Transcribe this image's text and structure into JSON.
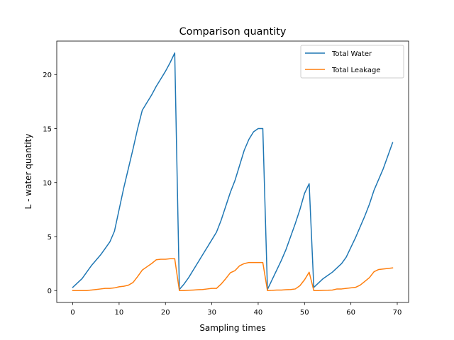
{
  "chart_data": {
    "type": "line",
    "title": "Comparison quantity",
    "xlabel": "Sampling times",
    "ylabel": "L - water quantity",
    "xlim": [
      -3.45,
      72.45
    ],
    "ylim": [
      -1.1,
      23.1
    ],
    "xticks": [
      0,
      10,
      20,
      30,
      40,
      50,
      60,
      70
    ],
    "yticks": [
      0,
      5,
      10,
      15,
      20
    ],
    "grid": false,
    "legend_position": "top-right",
    "x": [
      0,
      1,
      2,
      3,
      4,
      5,
      6,
      7,
      8,
      9,
      10,
      11,
      12,
      13,
      14,
      15,
      16,
      17,
      18,
      19,
      20,
      21,
      22,
      23,
      24,
      25,
      26,
      27,
      28,
      29,
      30,
      31,
      32,
      33,
      34,
      35,
      36,
      37,
      38,
      39,
      40,
      41,
      42,
      43,
      44,
      45,
      46,
      47,
      48,
      49,
      50,
      51,
      52,
      53,
      54,
      55,
      56,
      57,
      58,
      59,
      60,
      61,
      62,
      63,
      64,
      65,
      66,
      67,
      68,
      69
    ],
    "series": [
      {
        "name": "Total Water",
        "color": "#1f77b4",
        "values": [
          0.3,
          0.7,
          1.1,
          1.7,
          2.3,
          2.8,
          3.3,
          3.9,
          4.5,
          5.5,
          7.5,
          9.5,
          11.3,
          13.1,
          15.0,
          16.7,
          17.4,
          18.1,
          18.9,
          19.6,
          20.3,
          21.1,
          22.0,
          0.1,
          0.6,
          1.2,
          1.9,
          2.6,
          3.3,
          4.0,
          4.7,
          5.4,
          6.5,
          7.8,
          9.1,
          10.2,
          11.6,
          13.0,
          14.0,
          14.7,
          15.0,
          15.0,
          0.1,
          1.0,
          1.9,
          2.8,
          3.8,
          5.0,
          6.2,
          7.5,
          9.0,
          9.9,
          0.3,
          0.7,
          1.1,
          1.4,
          1.7,
          2.1,
          2.5,
          3.1,
          4.0,
          4.9,
          5.9,
          6.9,
          8.0,
          9.3,
          10.3,
          11.3,
          12.5,
          13.7
        ]
      },
      {
        "name": "Total Leakage",
        "color": "#ff7f0e",
        "values": [
          0.0,
          0.0,
          0.0,
          0.0,
          0.05,
          0.1,
          0.15,
          0.2,
          0.2,
          0.25,
          0.35,
          0.4,
          0.5,
          0.75,
          1.3,
          1.9,
          2.2,
          2.5,
          2.85,
          2.9,
          2.9,
          2.95,
          2.95,
          0.0,
          0.0,
          0.03,
          0.05,
          0.08,
          0.1,
          0.15,
          0.2,
          0.2,
          0.6,
          1.1,
          1.65,
          1.85,
          2.3,
          2.5,
          2.6,
          2.6,
          2.6,
          2.6,
          0.0,
          0.02,
          0.05,
          0.05,
          0.08,
          0.1,
          0.15,
          0.45,
          1.0,
          1.7,
          0.0,
          0.0,
          0.02,
          0.03,
          0.05,
          0.15,
          0.15,
          0.2,
          0.25,
          0.3,
          0.5,
          0.85,
          1.2,
          1.75,
          1.95,
          2.0,
          2.05,
          2.1
        ]
      }
    ]
  }
}
